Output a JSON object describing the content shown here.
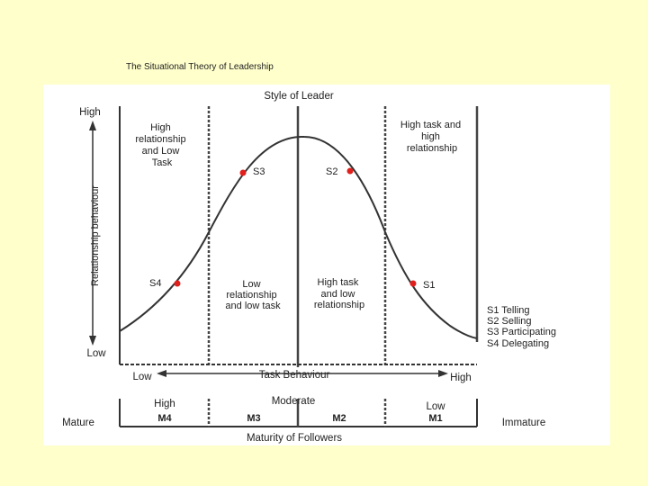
{
  "slide_title": "The Situational Theory of Leadership",
  "diagram": {
    "style_of_leader": "Style of Leader",
    "y_high": "High",
    "y_low": "Low",
    "y_axis_label": "Relationship behaviour",
    "x_low": "Low",
    "x_high": "High",
    "x_axis_label": "Task Behaviour",
    "quadrants": {
      "q3": [
        "High",
        "relationship",
        "and Low",
        "Task"
      ],
      "q2": [
        "High task and",
        "high",
        "relationship"
      ],
      "q4": [
        "Low",
        "relationship",
        "and low task"
      ],
      "q1": [
        "High task",
        "and low",
        "relationship"
      ]
    },
    "points": {
      "s1": "S1",
      "s2": "S2",
      "s3": "S3",
      "s4": "S4"
    },
    "legend": [
      "S1 Telling",
      "S2 Selling",
      "S3 Participating",
      "S4 Delegating"
    ],
    "maturity": {
      "mature": "Mature",
      "immature": "Immature",
      "high": "High",
      "moderate": "Moderate",
      "low": "Low",
      "m4": "M4",
      "m3": "M3",
      "m2": "M2",
      "m1": "M1",
      "axis_label": "Maturity of Followers"
    },
    "colors": {
      "point": "#e0201c",
      "line": "#333333"
    }
  }
}
